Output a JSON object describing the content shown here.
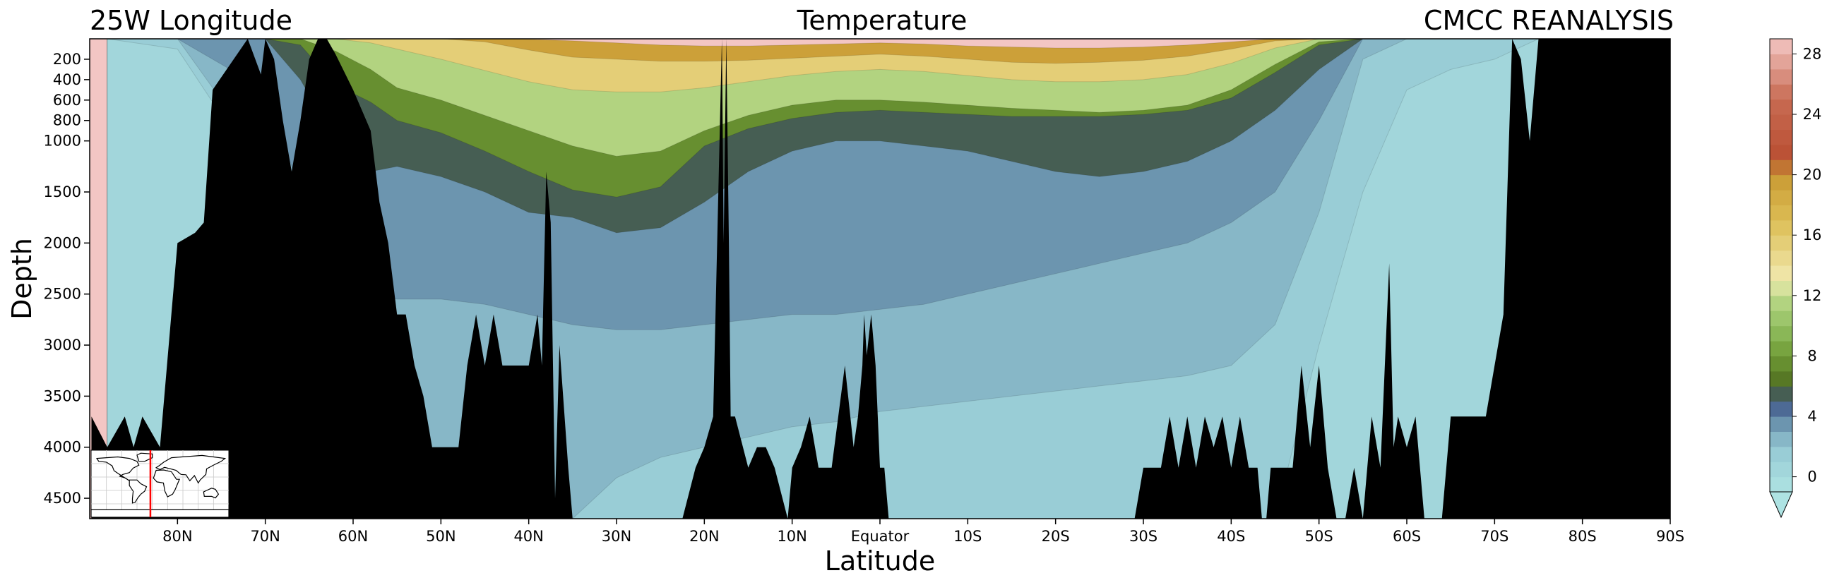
{
  "chart_data": {
    "type": "heatmap",
    "subtype": "filled-contour ocean section",
    "title": "Temperature",
    "title_left": "25W Longitude",
    "title_right": "CMCC REANALYSIS",
    "xlabel": "Latitude",
    "ylabel": "Depth",
    "x_ticks": [
      "80N",
      "70N",
      "60N",
      "50N",
      "40N",
      "30N",
      "20N",
      "10N",
      "Equator",
      "10S",
      "20S",
      "30S",
      "40S",
      "50S",
      "60S",
      "70S",
      "80S",
      "90S"
    ],
    "x_tick_values": [
      80,
      70,
      60,
      50,
      40,
      30,
      20,
      10,
      0,
      -10,
      -20,
      -30,
      -40,
      -50,
      -60,
      -70,
      -80,
      -90
    ],
    "xlim": [
      90,
      -90
    ],
    "y_ticks": [
      "200",
      "400",
      "600",
      "800",
      "1000",
      "1500",
      "2000",
      "2500",
      "3000",
      "3500",
      "4000",
      "4500"
    ],
    "y_tick_values": [
      200,
      400,
      600,
      800,
      1000,
      1500,
      2000,
      2500,
      3000,
      3500,
      4000,
      4500
    ],
    "ylim": [
      4700,
      0
    ],
    "colorbar": {
      "ticks": [
        "28",
        "24",
        "20",
        "16",
        "12",
        "8",
        "4",
        "0"
      ],
      "tick_values": [
        28,
        24,
        20,
        16,
        12,
        8,
        4,
        0
      ],
      "range": [
        -1,
        29
      ],
      "extend": "min",
      "level_step": 1,
      "stops": [
        {
          "value": -1,
          "color": "#aee3e3"
        },
        {
          "value": 2,
          "color": "#95c8d3"
        },
        {
          "value": 4,
          "color": "#5e84a3"
        },
        {
          "value": 5,
          "color": "#3c4f86"
        },
        {
          "value": 6,
          "color": "#4f6c1f"
        },
        {
          "value": 8,
          "color": "#6f9a35"
        },
        {
          "value": 10,
          "color": "#93c062"
        },
        {
          "value": 12,
          "color": "#bcd98a"
        },
        {
          "value": 13,
          "color": "#f2eab0"
        },
        {
          "value": 17,
          "color": "#dcbd54"
        },
        {
          "value": 20,
          "color": "#c99a34"
        },
        {
          "value": 21,
          "color": "#b94f32"
        },
        {
          "value": 25,
          "color": "#c86a52"
        },
        {
          "value": 29,
          "color": "#f3c6c4"
        }
      ]
    },
    "isotherm_depths": {
      "latitudes": [
        88,
        80,
        70,
        66,
        62,
        58,
        55,
        50,
        45,
        40,
        35,
        30,
        25,
        20,
        15,
        10,
        5,
        0,
        -5,
        -10,
        -15,
        -20,
        -25,
        -30,
        -35,
        -40,
        -45,
        -50,
        -55,
        -60,
        -65,
        -70,
        -75,
        -80,
        -85,
        -88
      ],
      "levels": [
        {
          "temperature": 20,
          "depth": [
            0,
            0,
            0,
            0,
            0,
            0,
            0,
            0,
            0,
            5,
            20,
            40,
            60,
            70,
            70,
            60,
            50,
            40,
            50,
            70,
            80,
            90,
            90,
            80,
            60,
            30,
            0,
            0,
            0,
            0,
            0,
            0,
            0,
            0,
            0,
            0
          ]
        },
        {
          "temperature": 16,
          "depth": [
            0,
            0,
            0,
            0,
            0,
            0,
            0,
            0,
            30,
            110,
            180,
            200,
            220,
            220,
            210,
            190,
            170,
            150,
            170,
            200,
            230,
            240,
            230,
            210,
            170,
            100,
            20,
            0,
            0,
            0,
            0,
            0,
            0,
            0,
            0,
            0
          ]
        },
        {
          "temperature": 12,
          "depth": [
            0,
            0,
            0,
            0,
            0,
            40,
            100,
            200,
            310,
            420,
            500,
            520,
            520,
            480,
            420,
            360,
            320,
            300,
            320,
            360,
            400,
            420,
            420,
            400,
            350,
            240,
            90,
            0,
            0,
            0,
            0,
            0,
            0,
            0,
            0,
            0
          ]
        },
        {
          "temperature": 8,
          "depth": [
            0,
            0,
            0,
            0,
            120,
            300,
            480,
            600,
            750,
            900,
            1050,
            1150,
            1100,
            900,
            750,
            650,
            600,
            600,
            620,
            650,
            680,
            700,
            720,
            700,
            650,
            500,
            250,
            30,
            0,
            0,
            0,
            0,
            0,
            0,
            0,
            0
          ]
        },
        {
          "temperature": 6,
          "depth": [
            0,
            0,
            0,
            60,
            450,
            620,
            800,
            920,
            1100,
            1300,
            1480,
            1550,
            1450,
            1050,
            880,
            780,
            720,
            700,
            720,
            740,
            760,
            760,
            760,
            740,
            700,
            580,
            330,
            60,
            0,
            0,
            0,
            0,
            0,
            0,
            0,
            0
          ]
        },
        {
          "temperature": 4,
          "depth": [
            0,
            0,
            0,
            400,
            1000,
            1300,
            1250,
            1350,
            1500,
            1700,
            1750,
            1900,
            1850,
            1600,
            1300,
            1100,
            1000,
            1000,
            1050,
            1100,
            1200,
            1300,
            1350,
            1300,
            1200,
            1000,
            700,
            300,
            0,
            0,
            0,
            0,
            0,
            0,
            0,
            0
          ]
        },
        {
          "temperature": 3,
          "depth": [
            0,
            0,
            500,
            1500,
            2300,
            2500,
            2550,
            2550,
            2600,
            2700,
            2800,
            2850,
            2850,
            2800,
            2750,
            2700,
            2700,
            2650,
            2600,
            2500,
            2400,
            2300,
            2200,
            2100,
            2000,
            1800,
            1500,
            800,
            0,
            0,
            0,
            0,
            0,
            0,
            0,
            0
          ]
        },
        {
          "temperature": 2,
          "depth": [
            0,
            0,
            1200,
            2000,
            4700,
            4700,
            4700,
            4700,
            4700,
            4700,
            4700,
            4300,
            4100,
            4000,
            3900,
            3800,
            3750,
            3650,
            3600,
            3550,
            3500,
            3450,
            3400,
            3350,
            3300,
            3200,
            2800,
            1700,
            200,
            0,
            0,
            0,
            0,
            0,
            0,
            0
          ]
        },
        {
          "temperature": 1,
          "depth": [
            0,
            100,
            1400,
            4700,
            4700,
            4700,
            4700,
            4700,
            4700,
            4700,
            4700,
            4700,
            4700,
            4700,
            4700,
            4700,
            4700,
            4700,
            4700,
            4700,
            4700,
            4700,
            4700,
            4700,
            4700,
            4700,
            4700,
            3000,
            1500,
            500,
            300,
            200,
            0,
            0,
            0,
            0
          ]
        }
      ]
    },
    "bathymetry": {
      "latitudes": [
        89.8,
        88,
        86,
        85,
        84,
        82,
        80,
        78,
        77,
        76,
        72,
        70.5,
        70,
        69,
        68,
        67,
        66,
        65,
        64,
        63,
        62,
        60,
        58,
        57,
        56,
        55,
        54,
        53,
        52,
        51,
        48,
        47,
        46,
        45,
        44,
        43,
        42,
        41,
        40,
        39,
        38.5,
        38,
        37.5,
        37,
        36.5,
        35.5,
        35,
        22.5,
        21,
        20,
        19,
        18,
        17.8,
        17.5,
        17.2,
        17,
        16.5,
        15,
        14,
        13,
        12,
        10.5,
        10,
        9,
        8,
        7,
        6,
        5.5,
        4,
        3,
        2.5,
        2,
        1.8,
        1.5,
        1,
        0.5,
        0,
        -0.5,
        -1,
        -1.5,
        -29,
        -30,
        -31,
        -32,
        -33,
        -34,
        -35,
        -36,
        -37,
        -38,
        -39,
        -40,
        -41,
        -42,
        -43,
        -43.5,
        -44,
        -44.5,
        -45,
        -46,
        -47,
        -48,
        -49,
        -50,
        -51,
        -52,
        -53,
        -54,
        -55,
        -56,
        -57,
        -58,
        -58.5,
        -59,
        -60,
        -61,
        -62,
        -63,
        -64,
        -65,
        -69,
        -70,
        -71,
        -72,
        -73,
        -74,
        -75,
        -76,
        -90
      ],
      "floor_depth": [
        3700,
        4000,
        3700,
        4000,
        3700,
        4000,
        2000,
        1900,
        1800,
        500,
        0,
        350,
        0,
        200,
        800,
        1300,
        800,
        200,
        0,
        0,
        150,
        500,
        900,
        1600,
        2000,
        2700,
        2700,
        3200,
        3500,
        4000,
        4000,
        3200,
        2700,
        3200,
        2700,
        3200,
        3200,
        3200,
        3200,
        2700,
        3200,
        1300,
        1800,
        4500,
        3000,
        4200,
        4700,
        4700,
        4200,
        4000,
        3700,
        0,
        2000,
        0,
        2000,
        3700,
        3700,
        4200,
        4000,
        4000,
        4200,
        4700,
        4200,
        4000,
        3700,
        4200,
        4200,
        4200,
        3200,
        4000,
        3700,
        3200,
        2700,
        3100,
        2700,
        3200,
        4200,
        4200,
        4700,
        4700,
        4700,
        4200,
        4200,
        4200,
        3700,
        4200,
        3700,
        4200,
        3700,
        4000,
        3700,
        4200,
        3700,
        4200,
        4200,
        4700,
        4700,
        4200,
        4200,
        4200,
        4200,
        3200,
        4000,
        3200,
        4200,
        4700,
        4700,
        4200,
        4700,
        3700,
        4200,
        2200,
        4000,
        3700,
        4000,
        3700,
        4700,
        4700,
        4700,
        3700,
        3700,
        3200,
        2700,
        0,
        200,
        1000,
        0,
        0,
        0
      ]
    },
    "inset_map": {
      "name": "world map with section line",
      "section_line": "25W",
      "section_line_color": "#ff0000"
    }
  }
}
